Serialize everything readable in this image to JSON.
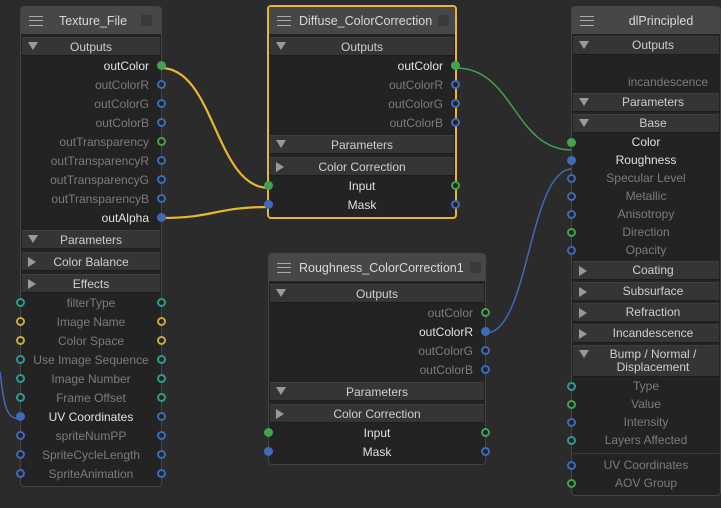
{
  "colors": {
    "green": "#3fa352",
    "blue": "#3f6ab8",
    "teal": "#2f9a92",
    "yellow": "#c4ad3a",
    "selected": "#e6b731",
    "background": "#2b2b2b"
  },
  "nodes": [
    {
      "id": "texture-file",
      "title": "Texture_File",
      "selected": false,
      "rows": [
        {
          "type": "section",
          "label": "Outputs",
          "expanded": true
        },
        {
          "type": "out",
          "label": "outColor",
          "right": "green",
          "active": true,
          "filled": true
        },
        {
          "type": "out",
          "label": "outColorR",
          "right": "blue"
        },
        {
          "type": "out",
          "label": "outColorG",
          "right": "blue"
        },
        {
          "type": "out",
          "label": "outColorB",
          "right": "blue"
        },
        {
          "type": "out",
          "label": "outTransparency",
          "right": "green"
        },
        {
          "type": "out",
          "label": "outTransparencyR",
          "right": "blue"
        },
        {
          "type": "out",
          "label": "outTransparencyG",
          "right": "blue"
        },
        {
          "type": "out",
          "label": "outTransparencyB",
          "right": "blue"
        },
        {
          "type": "out",
          "label": "outAlpha",
          "right": "blue",
          "active": true,
          "filled": true
        },
        {
          "type": "section",
          "label": "Parameters",
          "expanded": true
        },
        {
          "type": "section",
          "label": "Color Balance",
          "expanded": false
        },
        {
          "type": "section",
          "label": "Effects",
          "expanded": false
        },
        {
          "type": "in",
          "label": "filterType",
          "left": "teal",
          "right": "teal"
        },
        {
          "type": "in",
          "label": "Image Name",
          "left": "yellow",
          "right": "yellow"
        },
        {
          "type": "in",
          "label": "Color Space",
          "left": "yellow",
          "right": "yellow"
        },
        {
          "type": "in",
          "label": "Use Image Sequence",
          "left": "teal",
          "right": "teal"
        },
        {
          "type": "in",
          "label": "Image Number",
          "left": "teal",
          "right": "teal"
        },
        {
          "type": "in",
          "label": "Frame Offset",
          "left": "teal",
          "right": "teal"
        },
        {
          "type": "in",
          "label": "UV Coordinates",
          "left": "blue",
          "right": "blue",
          "active": true,
          "filledLeft": true
        },
        {
          "type": "in",
          "label": "spriteNumPP",
          "left": "blue",
          "right": "blue"
        },
        {
          "type": "in",
          "label": "SpriteCycleLength",
          "left": "blue",
          "right": "blue"
        },
        {
          "type": "in",
          "label": "SpriteAnimation",
          "left": "blue",
          "right": "blue"
        }
      ]
    },
    {
      "id": "diffuse-colorcorrection",
      "title": "Diffuse_ColorCorrection",
      "selected": true,
      "rows": [
        {
          "type": "section",
          "label": "Outputs",
          "expanded": true
        },
        {
          "type": "out",
          "label": "outColor",
          "right": "green",
          "active": true,
          "filled": true
        },
        {
          "type": "out",
          "label": "outColorR",
          "right": "blue"
        },
        {
          "type": "out",
          "label": "outColorG",
          "right": "blue"
        },
        {
          "type": "out",
          "label": "outColorB",
          "right": "blue"
        },
        {
          "type": "section",
          "label": "Parameters",
          "expanded": true
        },
        {
          "type": "section",
          "label": "Color Correction",
          "expanded": false
        },
        {
          "type": "in",
          "label": "Input",
          "left": "green",
          "right": "green",
          "active": true,
          "filledLeft": true
        },
        {
          "type": "in",
          "label": "Mask",
          "left": "blue",
          "right": "blue",
          "active": true,
          "filledLeft": true
        }
      ]
    },
    {
      "id": "roughness-colorcorrection1",
      "title": "Roughness_ColorCorrection1",
      "selected": false,
      "rows": [
        {
          "type": "section",
          "label": "Outputs",
          "expanded": true
        },
        {
          "type": "out",
          "label": "outColor",
          "right": "green"
        },
        {
          "type": "out",
          "label": "outColorR",
          "right": "blue",
          "active": true,
          "filled": true
        },
        {
          "type": "out",
          "label": "outColorG",
          "right": "blue"
        },
        {
          "type": "out",
          "label": "outColorB",
          "right": "blue"
        },
        {
          "type": "section",
          "label": "Parameters",
          "expanded": true
        },
        {
          "type": "section",
          "label": "Color Correction",
          "expanded": false
        },
        {
          "type": "in",
          "label": "Input",
          "left": "green",
          "right": "green",
          "active": true,
          "filledLeft": true
        },
        {
          "type": "in",
          "label": "Mask",
          "left": "blue",
          "right": "blue",
          "active": true,
          "filledLeft": true
        }
      ]
    },
    {
      "id": "dlprincipled",
      "title": "dlPrincipled",
      "selected": false,
      "rows": [
        {
          "type": "section",
          "label": "Outputs",
          "expanded": true
        },
        {
          "type": "out",
          "label": ""
        },
        {
          "type": "out",
          "label": "incandescence"
        },
        {
          "type": "section",
          "label": "Parameters",
          "expanded": true
        },
        {
          "type": "section",
          "label": "Base",
          "expanded": true
        },
        {
          "type": "in",
          "label": "Color",
          "left": "green",
          "active": true,
          "filledLeft": true
        },
        {
          "type": "in",
          "label": "Roughness",
          "left": "blue",
          "active": true,
          "filledLeft": true
        },
        {
          "type": "in",
          "label": "Specular Level",
          "left": "blue"
        },
        {
          "type": "in",
          "label": "Metallic",
          "left": "blue"
        },
        {
          "type": "in",
          "label": "Anisotropy",
          "left": "blue"
        },
        {
          "type": "in",
          "label": "Direction",
          "left": "green"
        },
        {
          "type": "in",
          "label": "Opacity",
          "left": "blue"
        },
        {
          "type": "section",
          "label": "Coating",
          "expanded": false
        },
        {
          "type": "section",
          "label": "Subsurface",
          "expanded": false
        },
        {
          "type": "section",
          "label": "Refraction",
          "expanded": false
        },
        {
          "type": "section",
          "label": "Incandescence",
          "expanded": false
        },
        {
          "type": "section",
          "label": "Bump / Normal / Displacement",
          "expanded": true
        },
        {
          "type": "in",
          "label": "Type",
          "left": "teal"
        },
        {
          "type": "in",
          "label": "Value",
          "left": "green"
        },
        {
          "type": "in",
          "label": "Intensity",
          "left": "blue"
        },
        {
          "type": "in",
          "label": "Layers Affected",
          "left": "teal"
        },
        {
          "type": "sep"
        },
        {
          "type": "in",
          "label": "UV Coordinates",
          "left": "blue"
        },
        {
          "type": "in",
          "label": "AOV Group",
          "left": "green"
        }
      ]
    }
  ],
  "connections": [
    {
      "from": "Texture_File.outColor",
      "to": "Diffuse_ColorCorrection.Input",
      "color": "selected"
    },
    {
      "from": "Texture_File.outAlpha",
      "to": "Diffuse_ColorCorrection.Mask",
      "color": "selected"
    },
    {
      "from": "Diffuse_ColorCorrection.outColor",
      "to": "dlPrincipled.Color",
      "color": "green"
    },
    {
      "from": "Roughness_ColorCorrection1.outColorR",
      "to": "dlPrincipled.Roughness",
      "color": "blue"
    },
    {
      "from": "offscreen",
      "to": "Texture_File.UV Coordinates",
      "color": "blue"
    }
  ]
}
